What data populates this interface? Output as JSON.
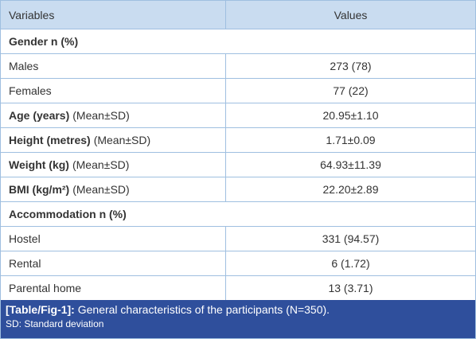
{
  "table": {
    "header": [
      "Variables",
      "Values"
    ],
    "rows": [
      {
        "section": "Gender n (%)"
      },
      {
        "label": "Males",
        "value": "273 (78)"
      },
      {
        "label": "Females",
        "value": "77 (22)"
      },
      {
        "label": "Age (years)",
        "qualifier": "(Mean±SD)",
        "value": "20.95±1.10"
      },
      {
        "label": "Height (metres)",
        "qualifier": "(Mean±SD)",
        "value": "1.71±0.09"
      },
      {
        "label": "Weight (kg)",
        "qualifier": "(Mean±SD)",
        "value": "64.93±11.39"
      },
      {
        "label": "BMI (kg/m²)",
        "qualifier": "(Mean±SD)",
        "value": "22.20±2.89"
      },
      {
        "section": "Accommodation n (%)"
      },
      {
        "label": "Hostel",
        "value": "331 (94.57)"
      },
      {
        "label": "Rental",
        "value": "6 (1.72)"
      },
      {
        "label": "Parental home",
        "value": "13 (3.71)"
      }
    ]
  },
  "caption": {
    "tag": "[Table/Fig-1]:",
    "text": "General characteristics of the participants (N=350).",
    "note": "SD: Standard deviation"
  }
}
